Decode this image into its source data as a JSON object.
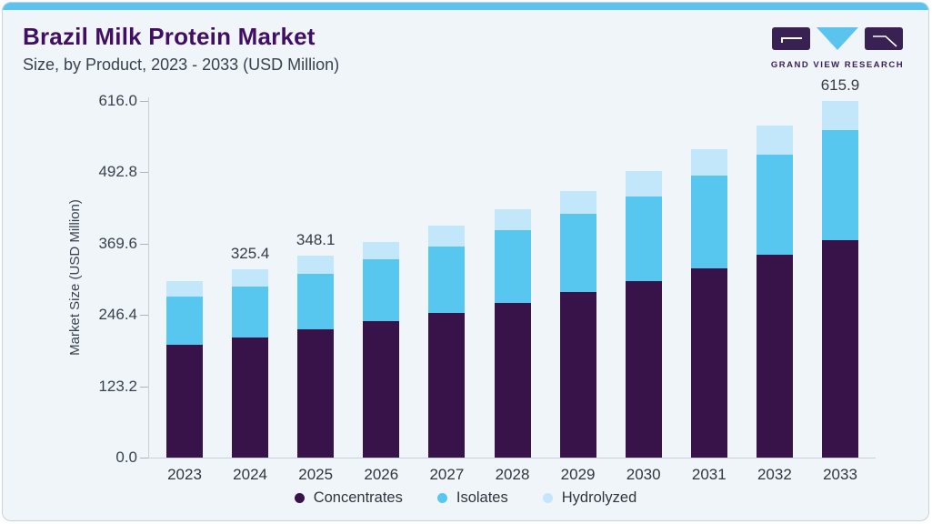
{
  "header": {
    "title": "Brazil Milk Protein Market",
    "subtitle": "Size, by Product, 2023 - 2033 (USD Million)"
  },
  "logo": {
    "text": "GRAND VIEW RESEARCH",
    "block_color": "#3a2153",
    "triangle_color": "#5ac3ee"
  },
  "accent_strip_color": "#5ac3f0",
  "chart_data": {
    "type": "bar",
    "stacked": true,
    "title": "Brazil Milk Protein Market",
    "subtitle": "Size, by Product, 2023 - 2033 (USD Million)",
    "categories": [
      "2023",
      "2024",
      "2025",
      "2026",
      "2027",
      "2028",
      "2029",
      "2030",
      "2031",
      "2032",
      "2033"
    ],
    "series": [
      {
        "name": "Concentrates",
        "color": "#371349",
        "values": [
          195.4,
          207.3,
          221.0,
          236.2,
          249.7,
          267.1,
          286.2,
          305.0,
          326.9,
          350.2,
          375.7
        ]
      },
      {
        "name": "Isolates",
        "color": "#58c7f0",
        "values": [
          82.6,
          88.6,
          96.6,
          105.8,
          115.1,
          125.4,
          135.6,
          146.6,
          160.1,
          173.7,
          190.6
        ]
      },
      {
        "name": "Hydrolyzed",
        "color": "#c2e7fa",
        "values": [
          26.1,
          29.5,
          30.5,
          31.0,
          35.9,
          36.3,
          38.0,
          43.5,
          45.1,
          48.9,
          49.6
        ]
      }
    ],
    "totals_shown": [
      "",
      "325.4",
      "348.1",
      "",
      "",
      "",
      "",
      "",
      "",
      "",
      "615.9"
    ],
    "ylabel": "Market Size (USD Million)",
    "ylim": [
      0,
      616
    ],
    "ytick_values": [
      0,
      123.2,
      246.4,
      369.6,
      492.8,
      616
    ],
    "ytick_labels": [
      "0.0",
      "123.2",
      "246.4",
      "369.6",
      "492.8",
      "616.0"
    ],
    "grid": false,
    "legend_position": "bottom"
  }
}
